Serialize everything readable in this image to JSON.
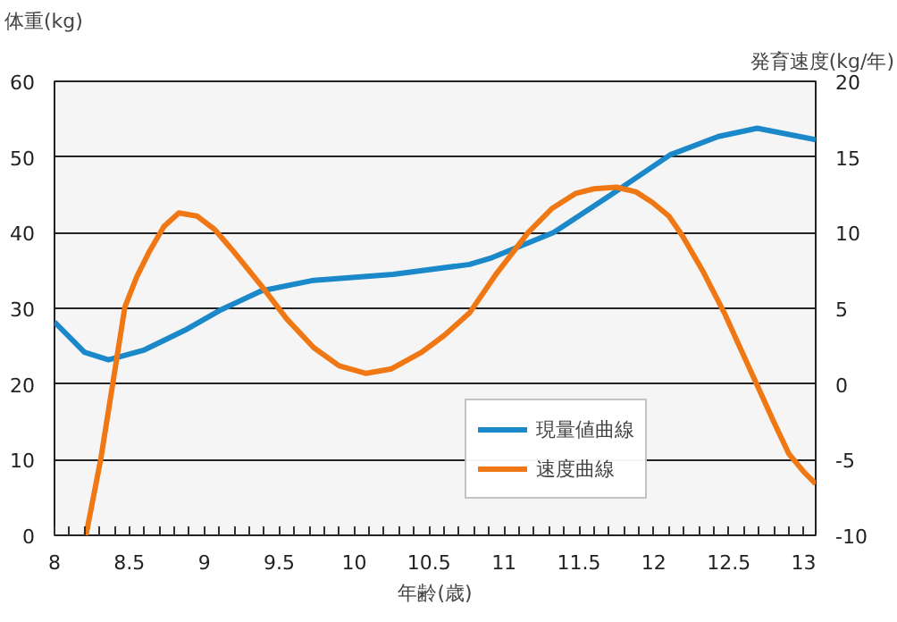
{
  "chart_data": {
    "type": "line",
    "xlabel": "年齢(歳)",
    "ylabel": "体重(kg)",
    "y2label": "発育速度(kg/年)",
    "xlim": [
      8,
      13.08
    ],
    "ylim": [
      0,
      60
    ],
    "y2lim": [
      -10,
      20
    ],
    "xticks": [
      8,
      {
        "value": 8.1,
        "label": null
      },
      {
        "value": 8.2,
        "label": null
      },
      {
        "value": 8.3,
        "label": null
      },
      {
        "value": 8.4,
        "label": null
      },
      8.5,
      {
        "value": 8.6,
        "label": null
      },
      {
        "value": 8.7,
        "label": null
      },
      {
        "value": 8.8,
        "label": null
      },
      {
        "value": 8.9,
        "label": null
      },
      9,
      {
        "value": 9.1,
        "label": null
      },
      {
        "value": 9.2,
        "label": null
      },
      {
        "value": 9.3,
        "label": null
      },
      {
        "value": 9.4,
        "label": null
      },
      9.5,
      {
        "value": 9.6,
        "label": null
      },
      {
        "value": 9.7,
        "label": null
      },
      {
        "value": 9.8,
        "label": null
      },
      {
        "value": 9.9,
        "label": null
      },
      10,
      {
        "value": 10.1,
        "label": null
      },
      {
        "value": 10.2,
        "label": null
      },
      {
        "value": 10.3,
        "label": null
      },
      {
        "value": 10.4,
        "label": null
      },
      10.5,
      {
        "value": 10.6,
        "label": null
      },
      {
        "value": 10.7,
        "label": null
      },
      {
        "value": 10.8,
        "label": null
      },
      {
        "value": 10.9,
        "label": null
      },
      11,
      {
        "value": 11.1,
        "label": null
      },
      {
        "value": 11.2,
        "label": null
      },
      {
        "value": 11.3,
        "label": null
      },
      {
        "value": 11.4,
        "label": null
      },
      11.5,
      {
        "value": 11.6,
        "label": null
      },
      {
        "value": 11.7,
        "label": null
      },
      {
        "value": 11.8,
        "label": null
      },
      {
        "value": 11.9,
        "label": null
      },
      12,
      {
        "value": 12.1,
        "label": null
      },
      {
        "value": 12.2,
        "label": null
      },
      {
        "value": 12.3,
        "label": null
      },
      {
        "value": 12.4,
        "label": null
      },
      12.5,
      {
        "value": 12.6,
        "label": null
      },
      {
        "value": 12.7,
        "label": null
      },
      {
        "value": 12.8,
        "label": null
      },
      {
        "value": 12.9,
        "label": null
      },
      13
    ],
    "yticks": [
      0,
      10,
      20,
      30,
      40,
      50,
      60
    ],
    "y2ticks": [
      -10,
      -5,
      0,
      5,
      10,
      15,
      20
    ],
    "grid": "y",
    "legend": "bottom right",
    "series": [
      {
        "name": "現量値曲線",
        "color": "#1a88c9",
        "x": [
          8,
          8.2,
          8.36,
          8.6,
          8.87,
          9.1,
          9.38,
          9.73,
          10.26,
          10.77,
          10.92,
          11.33,
          11.72,
          12.11,
          12.43,
          12.69,
          13.08
        ],
        "values": [
          28.2,
          24.2,
          23.2,
          24.5,
          27.1,
          29.7,
          32.3,
          33.7,
          34.5,
          35.8,
          36.7,
          40.0,
          45.1,
          50.3,
          52.7,
          53.8,
          52.3
        ]
      },
      {
        "name": "速度曲線",
        "color": "#f07814",
        "axis": "y2",
        "x": [
          8.21,
          8.31,
          8.47,
          8.55,
          8.63,
          8.73,
          8.83,
          8.95,
          9.07,
          9.2,
          9.38,
          9.55,
          9.73,
          9.9,
          10.08,
          10.25,
          10.45,
          10.6,
          10.77,
          10.95,
          11.16,
          11.32,
          11.48,
          11.6,
          11.75,
          11.88,
          11.99,
          12.1,
          12.19,
          12.33,
          12.47,
          12.58,
          12.69,
          12.8,
          12.9,
          13.0,
          13.08
        ],
        "values": [
          -10,
          -4.9,
          5.1,
          7.1,
          8.7,
          10.4,
          11.3,
          11.1,
          10.2,
          8.7,
          6.5,
          4.3,
          2.4,
          1.2,
          0.7,
          1.0,
          2.1,
          3.2,
          4.7,
          7.3,
          10.0,
          11.6,
          12.6,
          12.9,
          13.0,
          12.7,
          12.0,
          11.1,
          9.8,
          7.4,
          4.7,
          2.3,
          -0.1,
          -2.5,
          -4.6,
          -5.8,
          -6.6
        ]
      }
    ]
  }
}
